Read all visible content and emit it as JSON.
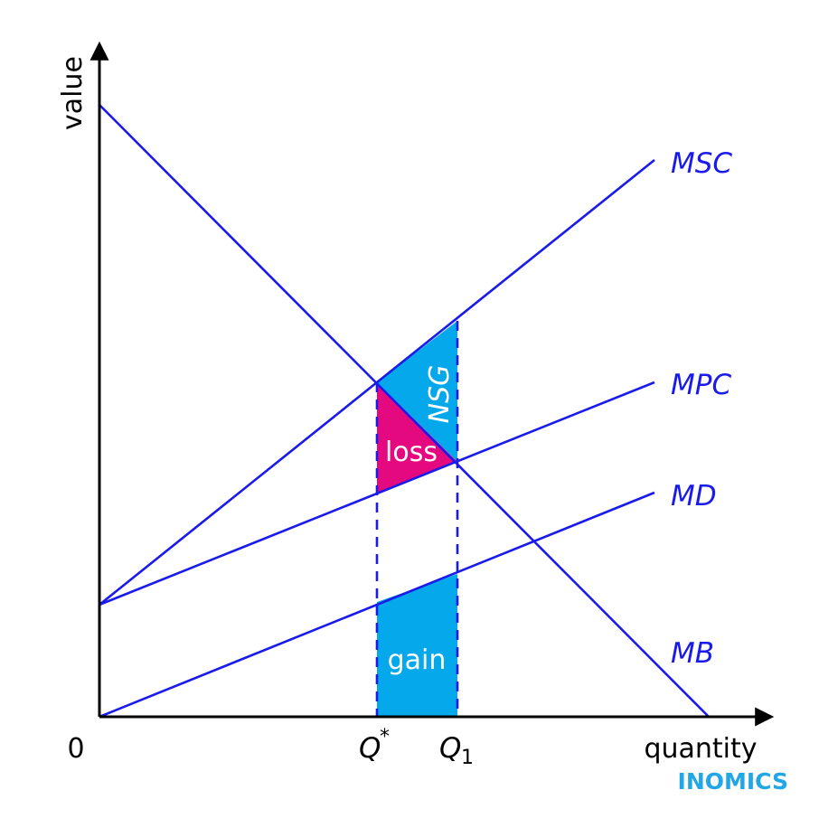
{
  "axes": {
    "y_label": "value",
    "x_label": "quantity",
    "origin_label": "0"
  },
  "ticks": {
    "q_star": "Q*",
    "q_one": "Q1"
  },
  "curves": {
    "msc": "MSC",
    "mpc": "MPC",
    "md": "MD",
    "mb": "MB"
  },
  "areas": {
    "nsg": "NSG",
    "loss": "loss",
    "gain": "gain"
  },
  "brand": "INOMICS",
  "colors": {
    "curves": "#1a1aeb",
    "shaded_area": "#06a8ec",
    "loss_area": "#e5097f",
    "brand": "#22a7e6"
  }
}
